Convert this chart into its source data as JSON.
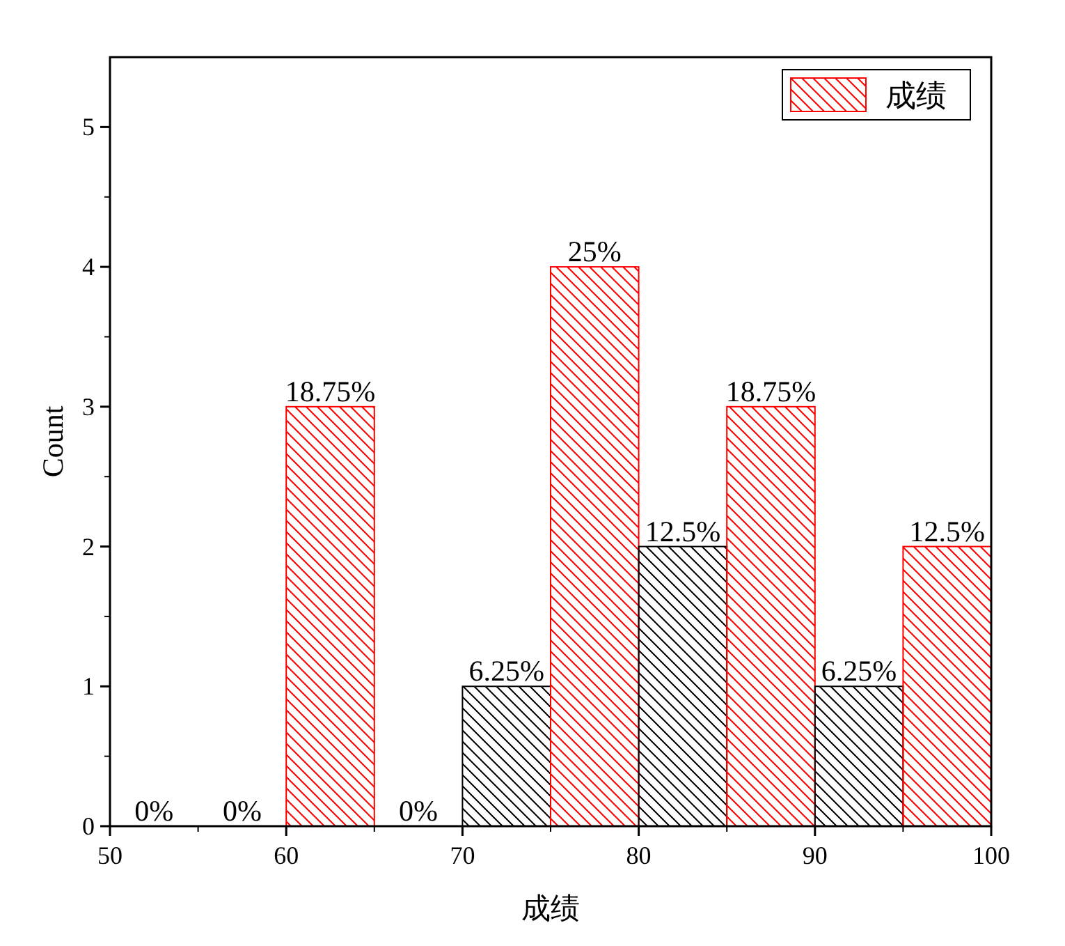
{
  "chart_data": {
    "type": "histogram",
    "xlabel": "成绩",
    "ylabel": "Count",
    "bins": [
      50,
      55,
      60,
      65,
      70,
      75,
      80,
      85,
      90,
      95,
      100
    ],
    "series": [
      {
        "name": "成绩",
        "color": "#ff0000",
        "values": [
          0,
          0,
          3,
          0,
          1,
          4,
          2,
          3,
          1,
          2
        ],
        "colors": [
          "#000000",
          "#ff0000",
          "#ff0000",
          "#000000",
          "#000000",
          "#ff0000",
          "#000000",
          "#ff0000",
          "#000000",
          "#ff0000"
        ]
      }
    ],
    "annotations": [
      {
        "text": "0%",
        "x": 52.5,
        "y": 0
      },
      {
        "text": "0%",
        "x": 57.5,
        "y": 0
      },
      {
        "text": "18.75%",
        "x": 62.5,
        "y": 3
      },
      {
        "text": "0%",
        "x": 67.5,
        "y": 0
      },
      {
        "text": "6.25%",
        "x": 72.5,
        "y": 1
      },
      {
        "text": "25%",
        "x": 77.5,
        "y": 4
      },
      {
        "text": "12.5%",
        "x": 82.5,
        "y": 2
      },
      {
        "text": "18.75%",
        "x": 87.5,
        "y": 3
      },
      {
        "text": "6.25%",
        "x": 92.5,
        "y": 1
      },
      {
        "text": "12.5%",
        "x": 97.5,
        "y": 2
      }
    ],
    "xlim": [
      50,
      100
    ],
    "xticks": [
      50,
      60,
      70,
      80,
      90,
      100
    ],
    "ylim": [
      0,
      5.5
    ],
    "yticks": [
      0,
      1,
      2,
      3,
      4,
      5
    ],
    "legend": "top right",
    "grid": false
  }
}
